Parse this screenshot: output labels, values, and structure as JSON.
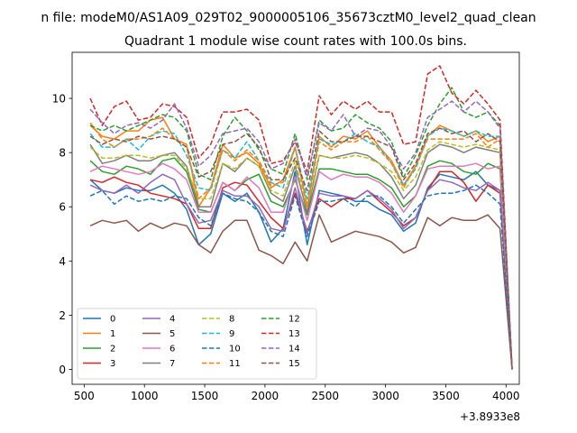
{
  "chart_data": {
    "type": "line",
    "suptitle": "n file: modeM0/AS1A09_029T02_9000005106_35673cztM0_level2_quad_clean",
    "title": "Quadrant 1 module wise count rates with 100.0s bins.",
    "xlabel": "",
    "ylabel": "",
    "x_offset_label": "+3.8933e8",
    "xlim": [
      400,
      4110
    ],
    "ylim": [
      -0.55,
      11.7
    ],
    "xticks": [
      500,
      1000,
      1500,
      2000,
      2500,
      3000,
      3500,
      4000
    ],
    "yticks": [
      0,
      2,
      4,
      6,
      8,
      10
    ],
    "x": [
      550,
      650,
      750,
      850,
      950,
      1050,
      1150,
      1250,
      1350,
      1450,
      1550,
      1650,
      1750,
      1850,
      1950,
      2050,
      2150,
      2250,
      2350,
      2450,
      2550,
      2650,
      2750,
      2850,
      2950,
      3050,
      3150,
      3250,
      3350,
      3450,
      3550,
      3650,
      3750,
      3850,
      3950,
      4050
    ],
    "series": [
      {
        "name": "0",
        "color": "#1f77b4",
        "dash": "solid",
        "values": [
          7.0,
          6.6,
          6.5,
          6.7,
          6.6,
          6.6,
          6.8,
          6.5,
          5.9,
          4.6,
          5.0,
          6.5,
          6.2,
          6.5,
          5.8,
          4.7,
          5.2,
          7.3,
          4.6,
          6.6,
          6.5,
          6.4,
          6.2,
          6.2,
          5.9,
          5.7,
          5.1,
          5.4,
          6.7,
          7.2,
          7.1,
          7.0,
          7.3,
          6.8,
          6.6,
          0.0
        ]
      },
      {
        "name": "1",
        "color": "#ff7f0e",
        "dash": "solid",
        "values": [
          9.0,
          8.6,
          8.5,
          8.8,
          8.8,
          9.2,
          9.3,
          8.5,
          8.3,
          6.0,
          6.7,
          8.3,
          7.8,
          8.0,
          7.6,
          6.7,
          7.0,
          8.2,
          6.0,
          8.6,
          8.2,
          8.6,
          8.5,
          8.8,
          8.2,
          7.7,
          6.8,
          7.5,
          8.6,
          9.0,
          8.8,
          8.6,
          8.8,
          8.4,
          8.6,
          0.0
        ]
      },
      {
        "name": "2",
        "color": "#2ca02c",
        "dash": "solid",
        "values": [
          7.7,
          7.3,
          7.2,
          7.5,
          7.4,
          7.2,
          7.7,
          7.8,
          7.3,
          5.9,
          5.8,
          6.9,
          6.6,
          7.0,
          7.2,
          6.2,
          6.0,
          7.0,
          5.7,
          7.4,
          7.4,
          7.3,
          7.2,
          7.2,
          7.0,
          6.7,
          6.0,
          6.4,
          7.5,
          7.7,
          7.6,
          7.3,
          7.2,
          7.6,
          7.4,
          0.0
        ]
      },
      {
        "name": "3",
        "color": "#d62728",
        "dash": "solid",
        "values": [
          7.0,
          6.9,
          7.1,
          6.9,
          6.8,
          6.5,
          6.4,
          6.3,
          6.1,
          5.2,
          5.2,
          6.7,
          6.9,
          6.8,
          6.2,
          5.6,
          5.2,
          6.5,
          5.1,
          6.3,
          6.0,
          6.3,
          6.3,
          6.6,
          6.2,
          5.8,
          5.3,
          5.6,
          6.6,
          7.3,
          7.3,
          6.9,
          6.2,
          6.8,
          6.5,
          0.0
        ]
      },
      {
        "name": "4",
        "color": "#9467bd",
        "dash": "solid",
        "values": [
          6.8,
          6.6,
          6.5,
          6.8,
          6.5,
          6.9,
          7.2,
          7.0,
          6.1,
          5.4,
          5.5,
          6.6,
          6.4,
          6.4,
          6.0,
          5.2,
          5.1,
          6.7,
          5.0,
          6.5,
          6.4,
          6.4,
          6.3,
          6.6,
          6.3,
          5.9,
          5.2,
          5.6,
          6.6,
          7.0,
          6.9,
          6.7,
          6.6,
          6.9,
          6.6,
          0.0
        ]
      },
      {
        "name": "5",
        "color": "#8c564b",
        "dash": "solid",
        "values": [
          5.3,
          5.5,
          5.4,
          5.5,
          5.1,
          5.4,
          5.2,
          5.4,
          5.3,
          4.6,
          4.3,
          5.1,
          5.5,
          5.5,
          4.4,
          4.2,
          3.9,
          4.7,
          4.0,
          5.7,
          4.7,
          4.9,
          5.1,
          5.0,
          4.9,
          4.7,
          4.3,
          4.5,
          5.6,
          5.3,
          5.6,
          5.5,
          5.5,
          5.7,
          5.2,
          0.0
        ]
      },
      {
        "name": "6",
        "color": "#e377c2",
        "dash": "solid",
        "values": [
          7.3,
          7.5,
          7.4,
          7.3,
          7.2,
          7.3,
          7.6,
          7.4,
          7.0,
          5.8,
          5.8,
          6.9,
          6.6,
          7.1,
          6.7,
          5.8,
          5.8,
          7.1,
          5.5,
          7.3,
          7.0,
          7.2,
          7.1,
          7.1,
          6.9,
          6.5,
          5.8,
          6.4,
          7.4,
          7.5,
          7.5,
          7.5,
          7.6,
          7.4,
          7.5,
          0.0
        ]
      },
      {
        "name": "7",
        "color": "#7f7f7f",
        "dash": "solid",
        "values": [
          8.3,
          7.6,
          7.7,
          7.9,
          7.7,
          7.7,
          7.9,
          8.0,
          7.5,
          6.0,
          6.0,
          7.6,
          7.3,
          7.8,
          7.5,
          6.5,
          6.2,
          7.5,
          5.8,
          7.9,
          7.8,
          7.9,
          8.0,
          7.9,
          7.6,
          7.1,
          6.3,
          6.8,
          8.0,
          8.3,
          8.2,
          8.0,
          8.2,
          8.1,
          8.0,
          0.0
        ]
      },
      {
        "name": "8",
        "color": "#bcbd22",
        "dash": "dashed",
        "values": [
          8.2,
          7.8,
          7.8,
          7.9,
          7.9,
          7.8,
          7.9,
          7.9,
          7.4,
          6.3,
          6.3,
          7.6,
          7.4,
          7.8,
          7.5,
          6.6,
          6.4,
          7.7,
          6.0,
          7.9,
          7.8,
          7.8,
          7.9,
          7.8,
          7.6,
          7.3,
          6.6,
          7.1,
          8.1,
          8.4,
          8.3,
          8.2,
          8.3,
          8.2,
          8.1,
          0.0
        ]
      },
      {
        "name": "9",
        "color": "#17becf",
        "dash": "dashed",
        "values": [
          8.7,
          8.2,
          8.2,
          8.5,
          8.1,
          8.6,
          8.8,
          8.7,
          7.9,
          6.7,
          6.6,
          8.1,
          7.8,
          8.4,
          7.7,
          6.9,
          6.7,
          8.2,
          6.3,
          8.5,
          8.3,
          8.4,
          8.7,
          8.4,
          8.2,
          7.6,
          6.8,
          7.4,
          8.6,
          8.9,
          8.8,
          8.6,
          8.8,
          8.6,
          8.6,
          0.0
        ]
      },
      {
        "name": "10",
        "color": "#1f77b4",
        "dash": "dashed",
        "values": [
          6.4,
          6.6,
          6.1,
          6.4,
          6.2,
          6.3,
          6.2,
          6.4,
          6.3,
          5.6,
          5.3,
          6.5,
          6.3,
          6.2,
          5.8,
          5.1,
          4.9,
          6.4,
          4.9,
          6.2,
          6.2,
          6.3,
          6.0,
          6.4,
          6.4,
          6.0,
          5.4,
          5.9,
          6.4,
          6.5,
          6.5,
          6.6,
          6.8,
          6.5,
          6.1,
          0.0
        ]
      },
      {
        "name": "11",
        "color": "#ff7f0e",
        "dash": "dashed",
        "values": [
          9.1,
          8.5,
          8.2,
          8.5,
          8.5,
          8.6,
          8.9,
          8.5,
          8.2,
          6.3,
          6.7,
          8.1,
          7.7,
          8.1,
          7.7,
          6.8,
          6.9,
          8.2,
          6.0,
          8.4,
          8.1,
          8.4,
          8.4,
          8.6,
          8.1,
          7.6,
          6.7,
          7.5,
          8.5,
          8.5,
          8.5,
          8.5,
          8.7,
          8.2,
          8.5,
          0.0
        ]
      },
      {
        "name": "12",
        "color": "#2ca02c",
        "dash": "dashed",
        "values": [
          9.0,
          8.8,
          9.0,
          8.8,
          9.0,
          9.2,
          9.4,
          9.3,
          8.8,
          7.2,
          7.0,
          8.6,
          9.3,
          8.8,
          8.1,
          7.4,
          7.2,
          8.7,
          7.0,
          9.2,
          8.8,
          8.9,
          9.4,
          9.1,
          8.9,
          8.4,
          7.1,
          7.9,
          9.0,
          9.8,
          10.4,
          9.5,
          9.3,
          9.5,
          9.0,
          0.0
        ]
      },
      {
        "name": "13",
        "color": "#d62728",
        "dash": "dashed",
        "values": [
          10.0,
          9.0,
          9.7,
          9.9,
          9.2,
          9.3,
          9.8,
          9.7,
          9.3,
          7.8,
          8.3,
          9.5,
          9.5,
          9.6,
          9.2,
          7.6,
          7.7,
          8.4,
          7.3,
          10.1,
          9.4,
          9.9,
          9.6,
          9.9,
          9.5,
          9.5,
          8.3,
          8.4,
          10.9,
          11.2,
          10.2,
          9.8,
          10.3,
          9.8,
          9.2,
          0.0
        ]
      },
      {
        "name": "14",
        "color": "#9467bd",
        "dash": "dashed",
        "values": [
          9.6,
          9.1,
          8.7,
          9.0,
          9.1,
          8.9,
          9.2,
          9.8,
          8.9,
          7.5,
          7.9,
          8.7,
          8.8,
          8.9,
          8.4,
          7.4,
          7.6,
          8.5,
          7.1,
          9.1,
          8.8,
          9.4,
          8.6,
          8.9,
          8.8,
          8.2,
          7.4,
          8.0,
          9.3,
          9.6,
          9.9,
          9.5,
          9.9,
          9.5,
          8.9,
          0.0
        ]
      },
      {
        "name": "15",
        "color": "#8c564b",
        "dash": "dashed",
        "values": [
          8.6,
          8.3,
          8.5,
          8.4,
          8.6,
          8.5,
          8.6,
          8.5,
          8.2,
          7.1,
          7.3,
          8.3,
          8.4,
          8.7,
          8.2,
          7.0,
          7.0,
          7.8,
          6.6,
          8.8,
          8.4,
          8.4,
          8.6,
          8.6,
          8.4,
          8.2,
          7.0,
          7.6,
          8.7,
          8.9,
          8.7,
          8.8,
          8.4,
          8.7,
          8.4,
          0.0
        ]
      }
    ],
    "legend_position": "lower-left",
    "legend_columns": 4,
    "grid": false
  }
}
